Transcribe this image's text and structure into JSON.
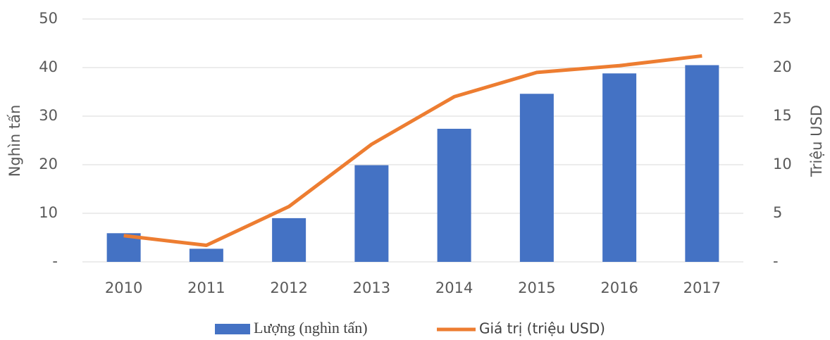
{
  "chart_data": {
    "type": "bar_line",
    "categories": [
      "2010",
      "2011",
      "2012",
      "2013",
      "2014",
      "2015",
      "2016",
      "2017"
    ],
    "series": [
      {
        "name": "Lượng (nghìn tấn)",
        "color": "#4472c4",
        "type": "bar",
        "values": [
          5.9,
          2.7,
          9.0,
          19.9,
          27.4,
          34.6,
          38.8,
          40.5
        ]
      },
      {
        "name": "Giá trị (triệu USD)",
        "color": "#ed7d31",
        "type": "line",
        "axis": "y2",
        "values": [
          2.7,
          1.7,
          5.7,
          12.1,
          17.0,
          19.5,
          20.2,
          21.2
        ]
      }
    ],
    "y_label": "Nghìn tấn",
    "y2_label": "Triệu USD",
    "ylim": [
      0,
      50
    ],
    "yticks": [
      {
        "value": 0,
        "label": "-"
      },
      10,
      20,
      30,
      40,
      50
    ],
    "y2lim": [
      0,
      25
    ],
    "y2ticks": [
      {
        "value": 0,
        "label": "-"
      },
      5,
      10,
      15,
      20,
      25
    ],
    "grid": true,
    "legend": "bottom"
  }
}
